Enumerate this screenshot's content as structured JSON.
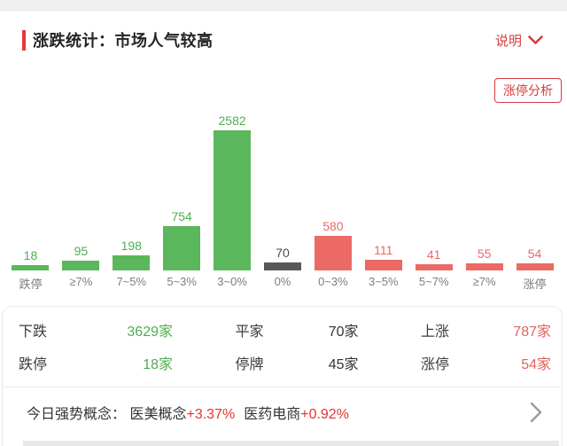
{
  "header": {
    "title": "涨跌统计：市场人气较高",
    "help_label": "说明",
    "analysis_button_label": "涨停分析"
  },
  "chart_data": {
    "type": "bar",
    "categories": [
      "跌停",
      "≥7%",
      "7~5%",
      "5~3%",
      "3~0%",
      "0%",
      "0~3%",
      "3~5%",
      "5~7%",
      "≥7%",
      "涨停"
    ],
    "values": [
      18,
      95,
      198,
      754,
      2582,
      70,
      580,
      111,
      41,
      55,
      54
    ],
    "color_keys": [
      "down",
      "down",
      "down",
      "down",
      "down",
      "flat",
      "up",
      "up",
      "up",
      "up",
      "up"
    ],
    "palette": {
      "down": "#5bb75b",
      "flat": "#58585a",
      "up": "#ec6a64"
    },
    "label_palette": {
      "down": "#4fae4f",
      "flat": "#4b4b4b",
      "up": "#ec6a64"
    },
    "ylim": [
      0,
      2582
    ],
    "title": "",
    "xlabel": "",
    "ylabel": ""
  },
  "summary": {
    "rows": [
      [
        {
          "label": "下跌",
          "value": "3629家",
          "color": "green"
        },
        {
          "label": "平家",
          "value": "70家",
          "color": "dark"
        },
        {
          "label": "上涨",
          "value": "787家",
          "color": "red"
        }
      ],
      [
        {
          "label": "跌停",
          "value": "18家",
          "color": "green"
        },
        {
          "label": "停牌",
          "value": "45家",
          "color": "dark"
        },
        {
          "label": "涨停",
          "value": "54家",
          "color": "red"
        }
      ]
    ]
  },
  "concepts": {
    "prefix": "今日强势概念：",
    "items": [
      {
        "name": "医美概念",
        "change": "+3.37%"
      },
      {
        "name": "医药电商",
        "change": "+0.92%"
      }
    ]
  }
}
